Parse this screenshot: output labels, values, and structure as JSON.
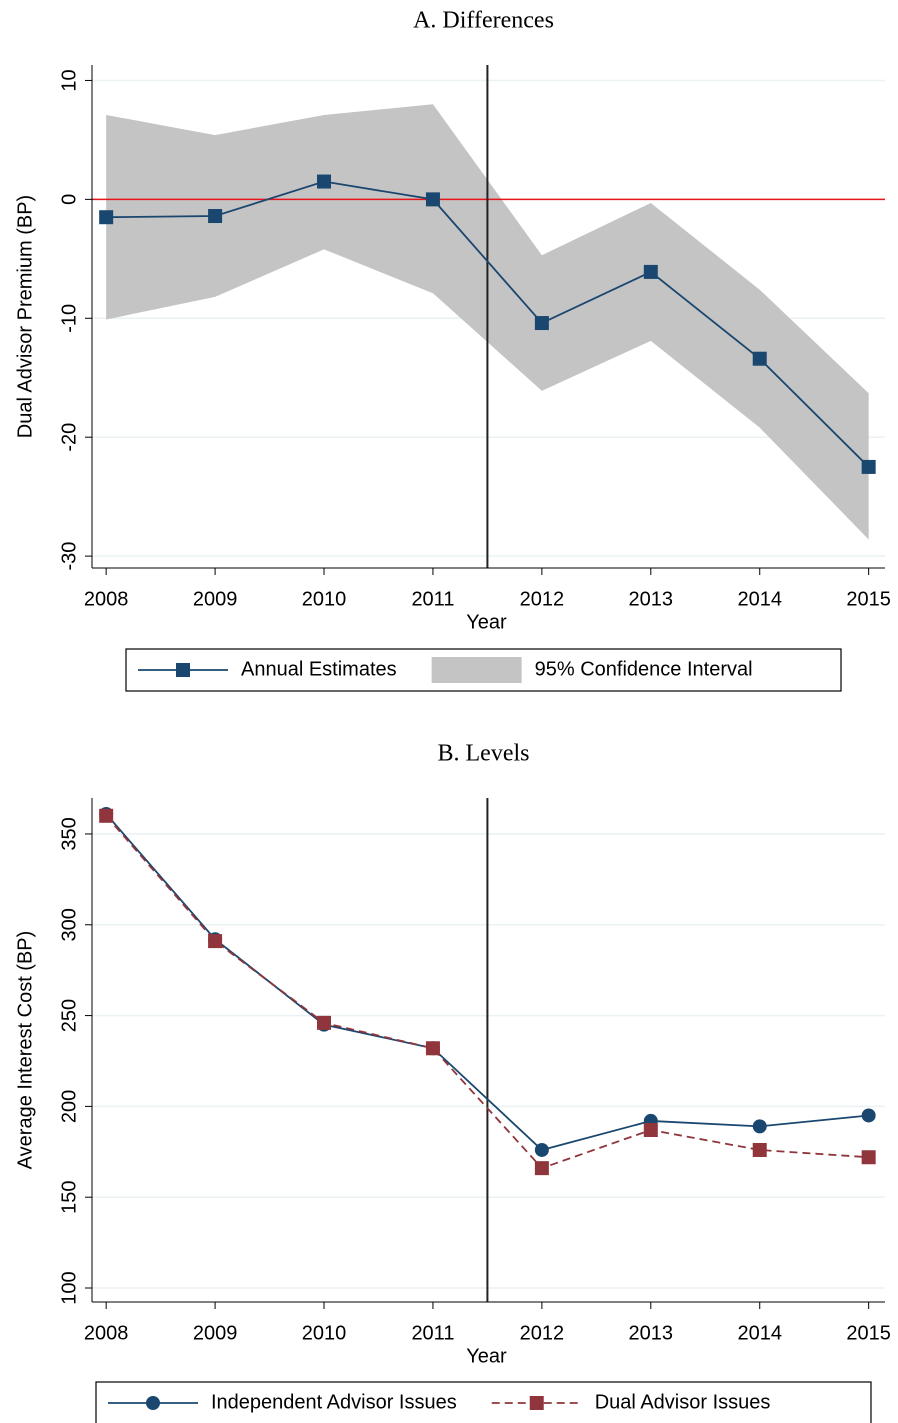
{
  "chart_data": [
    {
      "type": "line",
      "title": "A. Differences",
      "xlabel": "Year",
      "ylabel": "Dual Advisor Premium (BP)",
      "x": [
        2008,
        2009,
        2010,
        2011,
        2012,
        2013,
        2014,
        2015
      ],
      "xlim": [
        2007.87,
        2015.15
      ],
      "xticks": [
        2008,
        2009,
        2010,
        2011,
        2012,
        2013,
        2014,
        2015
      ],
      "ylim": [
        -31,
        11.3
      ],
      "yticks": [
        -30,
        -20,
        -10,
        0,
        10
      ],
      "grid": true,
      "hline": 0,
      "hline_color": "#e8141a",
      "vline": 2011.5,
      "series": [
        {
          "name": "Annual Estimates",
          "color": "#1a476f",
          "marker": "square",
          "values": [
            -1.5,
            -1.4,
            1.5,
            0,
            -10.4,
            -6.1,
            -13.4,
            -22.5
          ]
        },
        {
          "name": "95% Confidence Interval",
          "color": "#c4c4c4",
          "kind": "band",
          "upper": [
            7.1,
            5.4,
            7.1,
            8.0,
            -4.7,
            -0.3,
            -7.6,
            -16.3
          ],
          "lower": [
            -10.1,
            -8.2,
            -4.2,
            -7.9,
            -16.1,
            -11.9,
            -19.2,
            -28.6
          ]
        }
      ]
    },
    {
      "type": "line",
      "title": "B. Levels",
      "xlabel": "Year",
      "ylabel": "Average Interest Cost (BP)",
      "x": [
        2008,
        2009,
        2010,
        2011,
        2012,
        2013,
        2014,
        2015
      ],
      "xlim": [
        2007.87,
        2015.15
      ],
      "xticks": [
        2008,
        2009,
        2010,
        2011,
        2012,
        2013,
        2014,
        2015
      ],
      "ylim": [
        92.3,
        369.8
      ],
      "yticks": [
        100,
        150,
        200,
        250,
        300,
        350
      ],
      "grid": true,
      "vline": 2011.5,
      "series": [
        {
          "name": "Independent Advisor Issues",
          "color": "#1a476f",
          "marker": "circle",
          "values": [
            361,
            292,
            245,
            232,
            176,
            192,
            189,
            195
          ]
        },
        {
          "name": "Dual Advisor Issues",
          "color": "#90353b",
          "marker": "square",
          "dash": true,
          "values": [
            360,
            291,
            246,
            232,
            166,
            187,
            176,
            172
          ]
        }
      ]
    }
  ]
}
